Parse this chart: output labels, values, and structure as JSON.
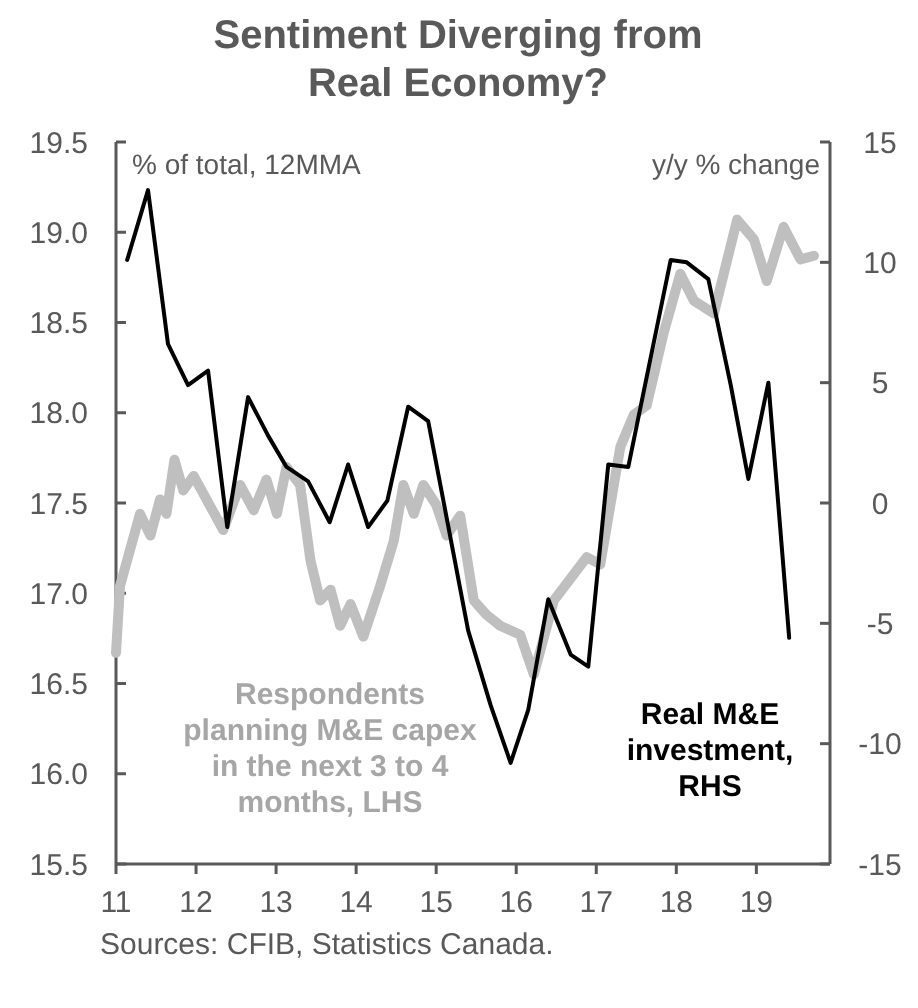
{
  "chart_data": {
    "type": "line",
    "title": "Sentiment Diverging from Real Economy?",
    "ylabel": "% of total, 12MMA",
    "y2label": "y/y % change",
    "annotations": [
      "Sources: CFIB, Statistics Canada."
    ],
    "xlim": [
      2011,
      2019.92
    ],
    "xticks": [
      {
        "value": 2011,
        "label": "11"
      },
      {
        "value": 2012,
        "label": "12"
      },
      {
        "value": 2013,
        "label": "13"
      },
      {
        "value": 2014,
        "label": "14"
      },
      {
        "value": 2015,
        "label": "15"
      },
      {
        "value": 2016,
        "label": "16"
      },
      {
        "value": 2017,
        "label": "17"
      },
      {
        "value": 2018,
        "label": "18"
      },
      {
        "value": 2019,
        "label": "19"
      }
    ],
    "ylim": [
      15.5,
      19.5
    ],
    "yticks": [
      {
        "value": 15.5,
        "label": "15.5"
      },
      {
        "value": 16,
        "label": "16.0"
      },
      {
        "value": 16.5,
        "label": "16.5"
      },
      {
        "value": 17,
        "label": "17.0"
      },
      {
        "value": 17.5,
        "label": "17.5"
      },
      {
        "value": 18,
        "label": "18.0"
      },
      {
        "value": 18.5,
        "label": "18.5"
      },
      {
        "value": 19,
        "label": "19.0"
      },
      {
        "value": 19.5,
        "label": "19.5"
      }
    ],
    "y2lim": [
      -15,
      15
    ],
    "y2ticks": [
      -15,
      -10,
      -5,
      0,
      5,
      10,
      15
    ],
    "grid": false,
    "line_style": "solid",
    "marker": "none",
    "series": [
      {
        "name": "Respondents planning M&E capex in the next 3 to 4 months, LHS",
        "color": "#bfbfbf",
        "axis": "y",
        "x": [
          2011.0,
          2011.05,
          2011.3,
          2011.43,
          2011.55,
          2011.63,
          2011.73,
          2011.84,
          2011.97,
          2012.34,
          2012.55,
          2012.72,
          2012.88,
          2013.01,
          2013.13,
          2013.3,
          2013.43,
          2013.55,
          2013.68,
          2013.8,
          2013.93,
          2014.09,
          2014.3,
          2014.47,
          2014.59,
          2014.72,
          2014.84,
          2015.0,
          2015.13,
          2015.3,
          2015.47,
          2015.63,
          2015.8,
          2016.05,
          2016.22,
          2016.47,
          2016.88,
          2017.05,
          2017.3,
          2017.47,
          2017.63,
          2017.84,
          2018.05,
          2018.22,
          2018.47,
          2018.76,
          2018.97,
          2019.13,
          2019.34,
          2019.55,
          2019.72
        ],
        "values": [
          16.67,
          17.04,
          17.44,
          17.32,
          17.52,
          17.44,
          17.74,
          17.57,
          17.65,
          17.35,
          17.6,
          17.46,
          17.63,
          17.44,
          17.7,
          17.6,
          17.18,
          16.96,
          17.02,
          16.82,
          16.94,
          16.76,
          17.04,
          17.29,
          17.6,
          17.44,
          17.6,
          17.49,
          17.32,
          17.43,
          16.96,
          16.88,
          16.82,
          16.77,
          16.55,
          16.96,
          17.2,
          17.16,
          17.81,
          17.99,
          18.04,
          18.44,
          18.77,
          18.62,
          18.55,
          19.07,
          18.96,
          18.73,
          19.03,
          18.85,
          18.87
        ]
      },
      {
        "name": "Real M&E investment, RHS",
        "color": "#000000",
        "axis": "y2",
        "x": [
          2011.14,
          2011.4,
          2011.65,
          2011.9,
          2012.15,
          2012.39,
          2012.65,
          2012.9,
          2013.13,
          2013.4,
          2013.67,
          2013.9,
          2014.15,
          2014.39,
          2014.65,
          2014.9,
          2015.4,
          2015.68,
          2015.93,
          2016.15,
          2016.4,
          2016.68,
          2016.9,
          2017.15,
          2017.4,
          2017.93,
          2018.13,
          2018.4,
          2018.68,
          2018.9,
          2019.15,
          2019.41
        ],
        "values": [
          10.1,
          13.0,
          6.6,
          4.9,
          5.5,
          -1.0,
          4.4,
          2.8,
          1.5,
          0.9,
          -0.8,
          1.6,
          -1.0,
          0.1,
          4.0,
          3.4,
          -5.3,
          -8.4,
          -10.8,
          -8.6,
          -4.0,
          -6.3,
          -6.8,
          1.6,
          1.5,
          10.1,
          10.0,
          9.3,
          4.9,
          1.0,
          5.0,
          -5.6
        ]
      }
    ]
  }
}
